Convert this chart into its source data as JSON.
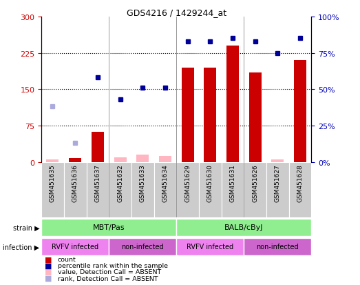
{
  "title": "GDS4216 / 1429244_at",
  "samples": [
    "GSM451635",
    "GSM451636",
    "GSM451637",
    "GSM451632",
    "GSM451633",
    "GSM451634",
    "GSM451629",
    "GSM451630",
    "GSM451631",
    "GSM451626",
    "GSM451627",
    "GSM451628"
  ],
  "count_values": [
    5,
    8,
    62,
    10,
    15,
    12,
    195,
    195,
    240,
    185,
    5,
    210
  ],
  "count_absent": [
    true,
    false,
    false,
    true,
    true,
    true,
    false,
    false,
    false,
    false,
    true,
    false
  ],
  "rank_values": [
    38,
    13,
    58,
    43,
    51,
    51,
    83,
    83,
    85,
    83,
    75,
    85
  ],
  "rank_absent": [
    true,
    true,
    false,
    false,
    false,
    false,
    false,
    false,
    false,
    false,
    false,
    false
  ],
  "ylim_left": [
    0,
    300
  ],
  "ylim_right": [
    0,
    100
  ],
  "yticks_left": [
    0,
    75,
    150,
    225,
    300
  ],
  "yticks_right": [
    0,
    25,
    50,
    75,
    100
  ],
  "bar_color_present": "#CC0000",
  "bar_color_absent": "#FFB6C1",
  "rank_color_present": "#000099",
  "rank_color_absent": "#AAAADD",
  "label_color_left": "#CC0000",
  "label_color_right": "#0000BB",
  "grid_color": "black"
}
